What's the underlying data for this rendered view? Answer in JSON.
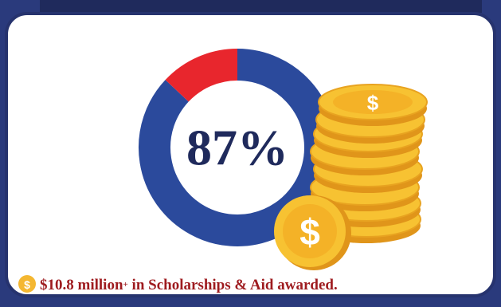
{
  "chart_data": {
    "type": "donut",
    "values": [
      87,
      13
    ],
    "value_labels": [
      "87%",
      null
    ],
    "colors": [
      "#2b4a9c",
      "#e8262d"
    ],
    "icon_symbol": "$",
    "caption": {
      "amount": "$10.8 million",
      "plus": "+",
      "rest": " in Scholarships & Aid awarded."
    }
  }
}
